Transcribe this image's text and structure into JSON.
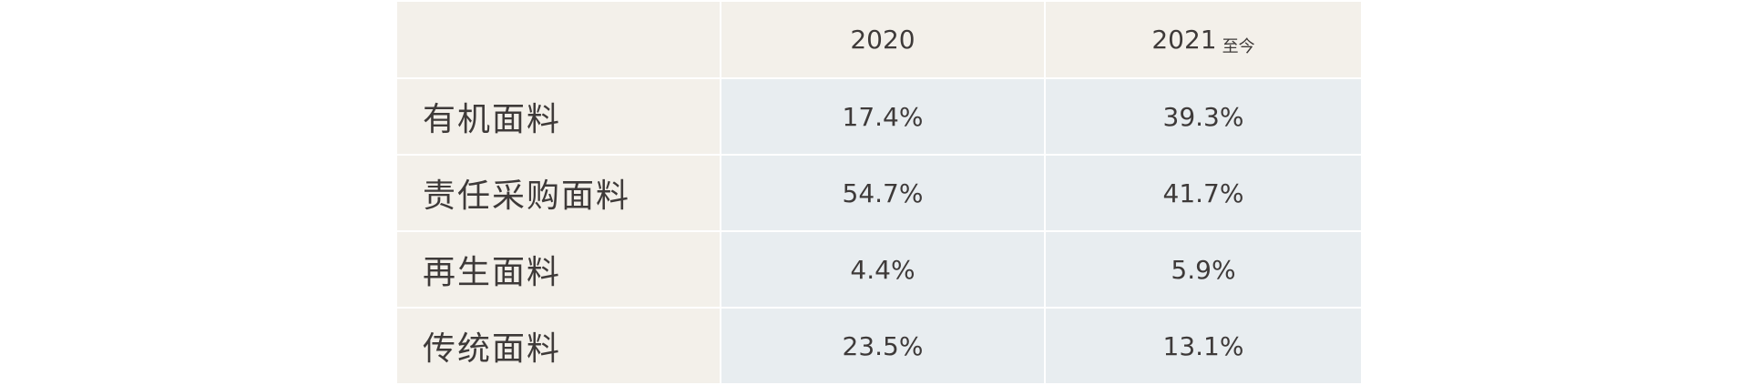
{
  "header": {
    "corner": "",
    "col_2020": "2020",
    "col_2021": "2021",
    "col_2021_suffix": "至今"
  },
  "rows": [
    {
      "label": "有机面料",
      "v2020": "17.4%",
      "v2021": "39.3%"
    },
    {
      "label": "责任采购面料",
      "v2020": "54.7%",
      "v2021": "41.7%"
    },
    {
      "label": "再生面料",
      "v2020": "4.4%",
      "v2021": "5.9%"
    },
    {
      "label": "传统面料",
      "v2020": "23.5%",
      "v2021": "13.1%"
    }
  ],
  "colors": {
    "label_bg": "#f3f0ea",
    "value_bg": "#e8edf0",
    "text": "#3e3a39",
    "divider": "#ffffff"
  }
}
